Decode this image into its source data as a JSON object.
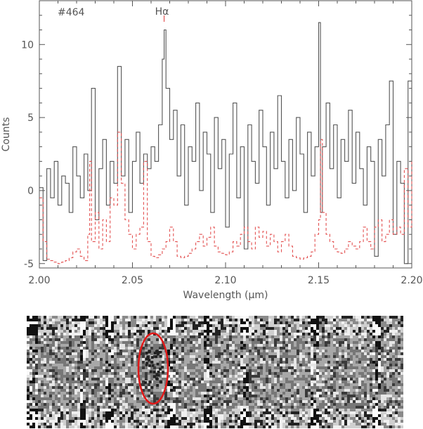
{
  "chart_data": [
    {
      "type": "line",
      "title": "",
      "annotation_id": "#464",
      "annotation_line": "Hα",
      "annotation_line_x": 2.067,
      "xlabel": "Wavelength (μm)",
      "ylabel": "Counts",
      "xlim": [
        2.0,
        2.2
      ],
      "ylim": [
        -5.3,
        13.0
      ],
      "xticks": [
        2.0,
        2.05,
        2.1,
        2.15,
        2.2
      ],
      "xtick_labels": [
        "2.00",
        "2.05",
        "2.10",
        "2.15",
        "2.20"
      ],
      "yticks": [
        -5,
        0,
        5,
        10
      ],
      "ytick_labels": [
        "-5",
        "0",
        "5",
        "10"
      ],
      "grid": false,
      "series": [
        {
          "style": "solid",
          "color": "#555555",
          "x": [
            2.0,
            2.002,
            2.004,
            2.006,
            2.008,
            2.01,
            2.012,
            2.014,
            2.016,
            2.018,
            2.02,
            2.022,
            2.024,
            2.026,
            2.028,
            2.03,
            2.032,
            2.034,
            2.036,
            2.038,
            2.04,
            2.042,
            2.044,
            2.046,
            2.048,
            2.05,
            2.052,
            2.054,
            2.056,
            2.058,
            2.06,
            2.062,
            2.064,
            2.066,
            2.067,
            2.068,
            2.07,
            2.072,
            2.074,
            2.076,
            2.078,
            2.08,
            2.082,
            2.084,
            2.086,
            2.088,
            2.09,
            2.092,
            2.094,
            2.096,
            2.098,
            2.1,
            2.102,
            2.104,
            2.106,
            2.108,
            2.11,
            2.112,
            2.114,
            2.116,
            2.118,
            2.12,
            2.122,
            2.124,
            2.126,
            2.128,
            2.13,
            2.132,
            2.134,
            2.136,
            2.138,
            2.14,
            2.142,
            2.144,
            2.146,
            2.148,
            2.15,
            2.151,
            2.152,
            2.154,
            2.156,
            2.158,
            2.16,
            2.162,
            2.164,
            2.166,
            2.168,
            2.17,
            2.172,
            2.174,
            2.176,
            2.178,
            2.18,
            2.182,
            2.184,
            2.186,
            2.188,
            2.19,
            2.192,
            2.194,
            2.196,
            2.198,
            2.2
          ],
          "y": [
            0.2,
            -4.8,
            1.5,
            -0.5,
            2.0,
            -1.0,
            1.0,
            0.5,
            -1.5,
            3.0,
            1.0,
            -0.5,
            2.5,
            0.0,
            7.0,
            -2.0,
            1.5,
            3.5,
            -1.0,
            2.0,
            0.5,
            8.5,
            1.0,
            3.5,
            -1.5,
            2.0,
            4.0,
            0.5,
            2.5,
            1.5,
            3.0,
            2.0,
            4.5,
            9.0,
            11.0,
            7.0,
            3.5,
            5.5,
            1.0,
            4.5,
            -1.0,
            3.0,
            2.0,
            6.0,
            0.0,
            4.0,
            2.5,
            -1.5,
            5.0,
            1.5,
            3.5,
            -2.5,
            2.5,
            6.0,
            -0.5,
            3.0,
            -4.0,
            4.5,
            2.0,
            0.5,
            5.5,
            3.0,
            -1.0,
            4.0,
            1.5,
            6.5,
            2.0,
            -0.5,
            3.5,
            0.0,
            5.0,
            2.5,
            -1.5,
            4.0,
            1.0,
            3.0,
            11.5,
            -1.5,
            3.0,
            6.0,
            1.5,
            4.5,
            -0.5,
            3.5,
            2.0,
            5.5,
            0.5,
            4.0,
            1.5,
            -1.0,
            3.0,
            2.0,
            -4.5,
            3.5,
            1.0,
            4.5,
            7.5,
            -3.0,
            2.0,
            0.5,
            -5.0,
            7.5,
            1.0
          ]
        },
        {
          "style": "dashed",
          "color": "#e35252",
          "x": [
            2.0,
            2.002,
            2.004,
            2.006,
            2.008,
            2.01,
            2.012,
            2.014,
            2.016,
            2.018,
            2.02,
            2.022,
            2.024,
            2.026,
            2.027,
            2.028,
            2.03,
            2.032,
            2.034,
            2.036,
            2.038,
            2.04,
            2.042,
            2.044,
            2.046,
            2.048,
            2.05,
            2.052,
            2.054,
            2.056,
            2.058,
            2.06,
            2.062,
            2.064,
            2.066,
            2.068,
            2.07,
            2.072,
            2.074,
            2.076,
            2.078,
            2.08,
            2.082,
            2.084,
            2.086,
            2.088,
            2.09,
            2.092,
            2.094,
            2.096,
            2.098,
            2.1,
            2.102,
            2.104,
            2.106,
            2.108,
            2.11,
            2.112,
            2.114,
            2.116,
            2.118,
            2.12,
            2.122,
            2.124,
            2.126,
            2.128,
            2.13,
            2.132,
            2.134,
            2.136,
            2.138,
            2.14,
            2.142,
            2.144,
            2.146,
            2.148,
            2.15,
            2.151,
            2.152,
            2.154,
            2.156,
            2.158,
            2.16,
            2.162,
            2.164,
            2.166,
            2.168,
            2.17,
            2.172,
            2.174,
            2.176,
            2.178,
            2.18,
            2.182,
            2.184,
            2.186,
            2.188,
            2.19,
            2.192,
            2.194,
            2.196,
            2.198,
            2.2
          ],
          "y": [
            -0.5,
            -3.5,
            -4.7,
            -4.8,
            -4.9,
            -5.0,
            -4.9,
            -4.8,
            -4.6,
            -4.2,
            -4.0,
            -4.5,
            -4.8,
            -3.0,
            2.0,
            -3.5,
            -1.5,
            -4.0,
            -2.0,
            -3.5,
            -0.5,
            -1.0,
            4.0,
            0.5,
            -2.0,
            -3.0,
            -4.0,
            -3.0,
            -2.5,
            2.0,
            -3.5,
            -4.5,
            -4.6,
            -4.4,
            -4.0,
            -3.5,
            -2.5,
            -3.5,
            -4.5,
            -4.6,
            -4.5,
            -4.3,
            -4.0,
            -3.5,
            -3.0,
            -3.8,
            -3.2,
            -2.5,
            -3.8,
            -4.2,
            -4.3,
            -4.4,
            -4.2,
            -3.5,
            -3.8,
            -3.0,
            -2.5,
            -3.5,
            -4.0,
            -2.5,
            -3.2,
            -2.8,
            -3.8,
            -3.0,
            -3.5,
            -4.2,
            -3.5,
            -3.0,
            -3.8,
            -4.5,
            -4.6,
            -4.7,
            -4.6,
            -4.5,
            -4.2,
            -3.0,
            -2.0,
            3.5,
            -1.5,
            -3.0,
            -3.5,
            -4.0,
            -4.2,
            -4.3,
            -4.0,
            -3.5,
            -3.8,
            -4.0,
            -3.5,
            -2.5,
            -3.5,
            -4.0,
            -2.5,
            -2.0,
            -3.5,
            -3.0,
            -2.0,
            -3.0,
            -2.5,
            -3.0,
            1.5,
            -2.5,
            2.0
          ]
        }
      ]
    },
    {
      "type": "image",
      "highlight_color": "#e01818"
    }
  ]
}
